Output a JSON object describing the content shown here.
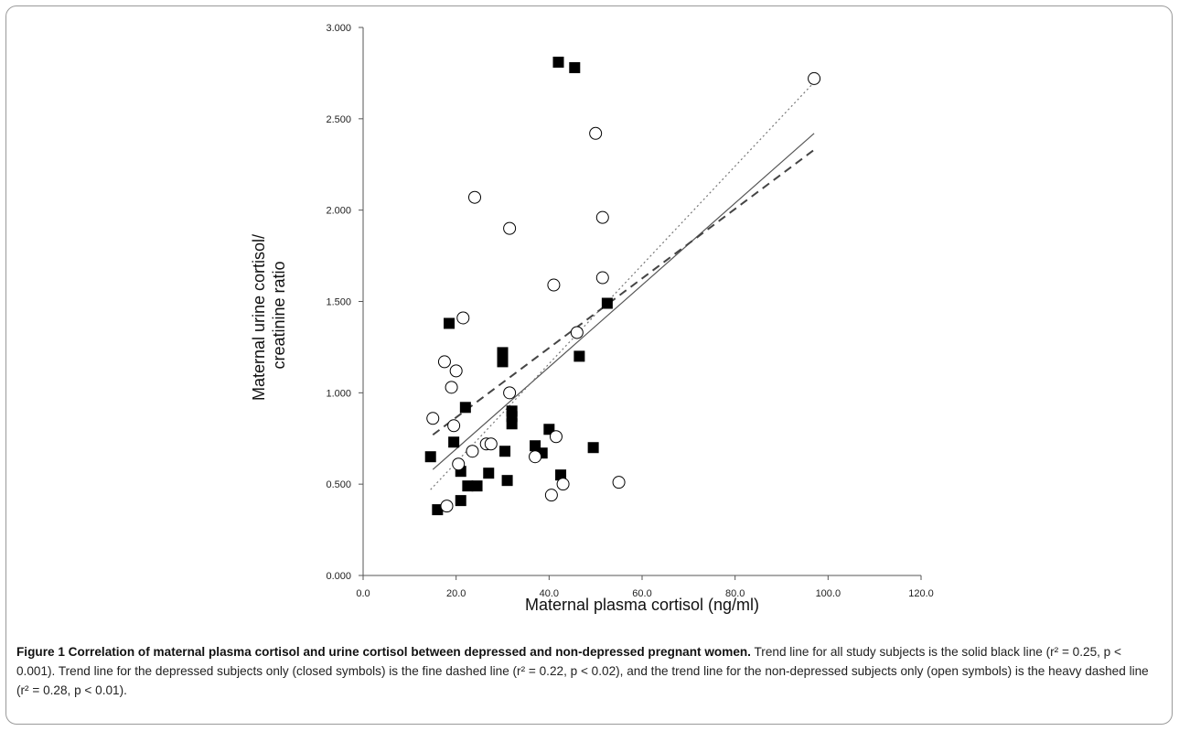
{
  "chart_data": {
    "type": "scatter",
    "xlabel": "Maternal plasma cortisol (ng/ml)",
    "ylabel": "Maternal urine cortisol/ creatinine ratio",
    "ylabel_lines": [
      "Maternal urine cortisol/",
      "creatinine ratio"
    ],
    "xlim": [
      0,
      120
    ],
    "ylim": [
      0,
      3
    ],
    "x_ticks": [
      0,
      20,
      40,
      60,
      80,
      100,
      120
    ],
    "y_ticks": [
      0,
      0.5,
      1,
      1.5,
      2,
      2.5,
      3
    ],
    "x_tick_labels": [
      "0.0",
      "20.0",
      "40.0",
      "60.0",
      "80.0",
      "100.0",
      "120.0"
    ],
    "y_tick_labels": [
      "0.000",
      "0.500",
      "1.000",
      "1.500",
      "2.000",
      "2.500",
      "3.000"
    ],
    "grid": false,
    "series": [
      {
        "marker": "filled-square",
        "color": "#000000",
        "points": [
          [
            14.5,
            0.65
          ],
          [
            16,
            0.36
          ],
          [
            18.5,
            1.38
          ],
          [
            19.5,
            0.73
          ],
          [
            21,
            0.41
          ],
          [
            21,
            0.57
          ],
          [
            22,
            0.92
          ],
          [
            22.5,
            0.49
          ],
          [
            24.5,
            0.49
          ],
          [
            27,
            0.56
          ],
          [
            30,
            1.22
          ],
          [
            30,
            1.17
          ],
          [
            30.5,
            0.68
          ],
          [
            31,
            0.52
          ],
          [
            32,
            0.9
          ],
          [
            32,
            0.87
          ],
          [
            32,
            0.83
          ],
          [
            37,
            0.71
          ],
          [
            38.5,
            0.67
          ],
          [
            40,
            0.8
          ],
          [
            42,
            2.81
          ],
          [
            42.5,
            0.55
          ],
          [
            45.5,
            2.78
          ],
          [
            46.5,
            1.2
          ],
          [
            49.5,
            0.7
          ],
          [
            52.5,
            1.49
          ]
        ]
      },
      {
        "marker": "open-circle",
        "color": "#000000",
        "points": [
          [
            15,
            0.86
          ],
          [
            17.5,
            1.17
          ],
          [
            18,
            0.38
          ],
          [
            19,
            1.03
          ],
          [
            19.5,
            0.82
          ],
          [
            20,
            1.12
          ],
          [
            20.5,
            0.61
          ],
          [
            21.5,
            1.41
          ],
          [
            23.5,
            0.68
          ],
          [
            24,
            2.07
          ],
          [
            26.5,
            0.72
          ],
          [
            27.5,
            0.72
          ],
          [
            31.5,
            1.9
          ],
          [
            31.5,
            1.0
          ],
          [
            37,
            0.65
          ],
          [
            40.5,
            0.44
          ],
          [
            41,
            1.59
          ],
          [
            41.5,
            0.76
          ],
          [
            43,
            0.5
          ],
          [
            46,
            1.33
          ],
          [
            50,
            2.42
          ],
          [
            51.5,
            1.96
          ],
          [
            51.5,
            1.63
          ],
          [
            55,
            0.51
          ],
          [
            97,
            2.72
          ]
        ]
      }
    ],
    "trend_lines": [
      {
        "style": "solid",
        "color": "#555555",
        "points": [
          [
            15,
            0.58
          ],
          [
            97,
            2.42
          ]
        ]
      },
      {
        "style": "fine-dashed",
        "color": "#777777",
        "points": [
          [
            14.5,
            0.47
          ],
          [
            97,
            2.7
          ]
        ]
      },
      {
        "style": "heavy-dashed",
        "color": "#444444",
        "points": [
          [
            15,
            0.77
          ],
          [
            97,
            2.33
          ]
        ]
      }
    ]
  },
  "caption": {
    "title": "Figure 1 Correlation of maternal plasma cortisol and urine cortisol between depressed and non-depressed pregnant women.",
    "body": " Trend line for all study subjects is the solid black line (r² = 0.25, p < 0.001). Trend line for the depressed subjects only (closed symbols) is the fine dashed line (r² = 0.22, p < 0.02), and the trend line for the non-depressed subjects only (open symbols) is the heavy dashed line (r² = 0.28, p < 0.01)."
  }
}
